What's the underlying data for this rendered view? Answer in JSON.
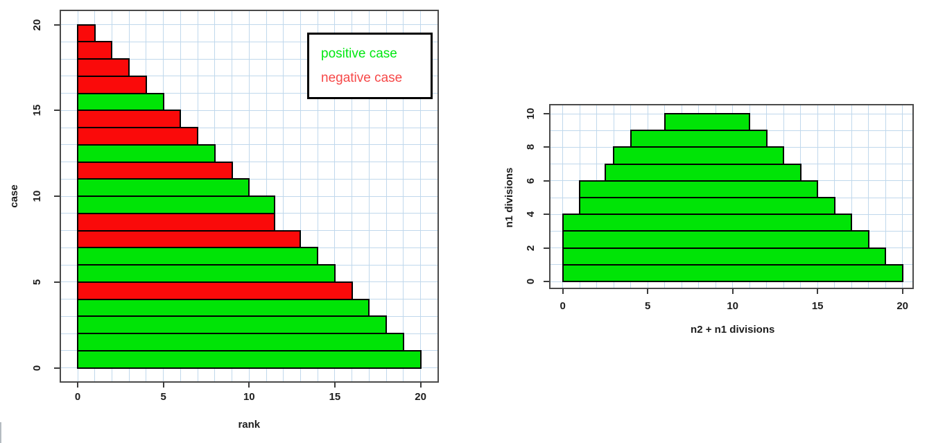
{
  "page": {
    "background": "#ffffff"
  },
  "colors": {
    "positive_fill": "#00e406",
    "negative_fill": "#fa0a0a",
    "bar_border": "#000000",
    "plot_box_border": "#4a4a4a",
    "grid_line": "#c0d8ec",
    "tick_mark": "#3c3c3c",
    "text": "#1d1d1d",
    "legend_border": "#000000",
    "legend_background": "#ffffff",
    "window_edge_artifact": "#b5bbc1"
  },
  "chart_data": [
    {
      "id": "rank-chart",
      "type": "bar",
      "orientation": "horizontal",
      "title": "",
      "xlabel": "rank",
      "ylabel": "case",
      "xlim": [
        0,
        20
      ],
      "ylim": [
        0,
        20
      ],
      "x_ticks": [
        0,
        5,
        10,
        15,
        20
      ],
      "y_ticks": [
        0,
        5,
        10,
        15,
        20
      ],
      "grid": {
        "x_step": 1,
        "y_step": 1,
        "on": true
      },
      "legend": {
        "position": "top-right",
        "items": [
          {
            "label": "positive case",
            "color": "#00e711"
          },
          {
            "label": "negative case",
            "color": "#f64848"
          }
        ]
      },
      "bars": [
        {
          "case": 1,
          "rank": 20,
          "category": "positive"
        },
        {
          "case": 2,
          "rank": 19,
          "category": "positive"
        },
        {
          "case": 3,
          "rank": 18,
          "category": "positive"
        },
        {
          "case": 4,
          "rank": 17,
          "category": "positive"
        },
        {
          "case": 5,
          "rank": 16,
          "category": "negative"
        },
        {
          "case": 6,
          "rank": 15,
          "category": "positive"
        },
        {
          "case": 7,
          "rank": 14,
          "category": "positive"
        },
        {
          "case": 8,
          "rank": 13,
          "category": "negative"
        },
        {
          "case": 9,
          "rank": 11.5,
          "category": "negative"
        },
        {
          "case": 10,
          "rank": 11.5,
          "category": "positive"
        },
        {
          "case": 11,
          "rank": 10,
          "category": "positive"
        },
        {
          "case": 12,
          "rank": 9,
          "category": "negative"
        },
        {
          "case": 13,
          "rank": 8,
          "category": "positive"
        },
        {
          "case": 14,
          "rank": 7,
          "category": "negative"
        },
        {
          "case": 15,
          "rank": 6,
          "category": "negative"
        },
        {
          "case": 16,
          "rank": 5,
          "category": "positive"
        },
        {
          "case": 17,
          "rank": 4,
          "category": "negative"
        },
        {
          "case": 18,
          "rank": 3,
          "category": "negative"
        },
        {
          "case": 19,
          "rank": 2,
          "category": "negative"
        },
        {
          "case": 20,
          "rank": 1,
          "category": "negative"
        }
      ]
    },
    {
      "id": "divisions-chart",
      "type": "bar",
      "orientation": "horizontal",
      "title": "",
      "xlabel": "n2 + n1 divisions",
      "ylabel": "n1 divisions",
      "xlim": [
        0,
        20
      ],
      "ylim": [
        0,
        10
      ],
      "x_ticks": [
        0,
        5,
        10,
        15,
        20
      ],
      "y_ticks": [
        0,
        2,
        4,
        6,
        8,
        10
      ],
      "grid": {
        "x_step": 1,
        "y_step": 1,
        "on": true
      },
      "bars": [
        {
          "level": 1,
          "from": 0,
          "to": 20,
          "category": "positive"
        },
        {
          "level": 2,
          "from": 0,
          "to": 19,
          "category": "positive"
        },
        {
          "level": 3,
          "from": 0,
          "to": 18,
          "category": "positive"
        },
        {
          "level": 4,
          "from": 0,
          "to": 17,
          "category": "positive"
        },
        {
          "level": 5,
          "from": 1,
          "to": 16,
          "category": "positive"
        },
        {
          "level": 6,
          "from": 1,
          "to": 15,
          "category": "positive"
        },
        {
          "level": 7,
          "from": 2.5,
          "to": 14,
          "category": "positive"
        },
        {
          "level": 8,
          "from": 3,
          "to": 13,
          "category": "positive"
        },
        {
          "level": 9,
          "from": 4,
          "to": 12,
          "category": "positive"
        },
        {
          "level": 10,
          "from": 6,
          "to": 11,
          "category": "positive"
        }
      ]
    }
  ]
}
